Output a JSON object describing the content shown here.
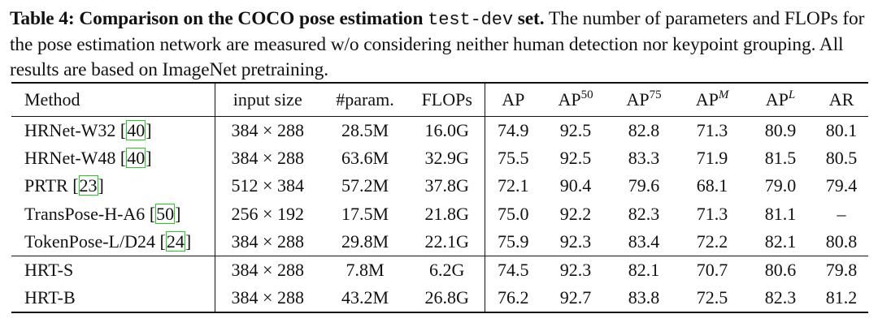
{
  "caption": {
    "label": "Table 4:",
    "bold_text": "Comparison on the COCO pose estimation",
    "mono_text": "test-dev",
    "bold_end": "set.",
    "body": "The number of parameters and FLOPs for the pose estimation network are measured w/o considering neither human detection nor keypoint grouping. All results are based on ImageNet pretraining."
  },
  "table": {
    "headers": {
      "method": "Method",
      "input_size": "input size",
      "param": "#param.",
      "flops": "FLOPs",
      "ap": "AP",
      "ap50_base": "AP",
      "ap50_sup": "50",
      "ap75_base": "AP",
      "ap75_sup": "75",
      "apm_base": "AP",
      "apm_sup": "M",
      "apl_base": "AP",
      "apl_sup": "L",
      "ar": "AR"
    },
    "group1": [
      {
        "name": "HRNet-W32 ",
        "ref": "40",
        "tail": "",
        "input": "384 × 288",
        "param": "28.5M",
        "flops": "16.0G",
        "ap": "74.9",
        "ap50": "92.5",
        "ap75": "82.8",
        "apm": "71.3",
        "apl": "80.9",
        "ar": "80.1"
      },
      {
        "name": "HRNet-W48 ",
        "ref": "40",
        "tail": "",
        "input": "384 × 288",
        "param": "63.6M",
        "flops": "32.9G",
        "ap": "75.5",
        "ap50": "92.5",
        "ap75": "83.3",
        "apm": "71.9",
        "apl": "81.5",
        "ar": "80.5"
      },
      {
        "name": "PRTR ",
        "ref": "23",
        "tail": "",
        "input": "512 × 384",
        "param": "57.2M",
        "flops": "37.8G",
        "ap": "72.1",
        "ap50": "90.4",
        "ap75": "79.6",
        "apm": "68.1",
        "apl": "79.0",
        "ar": "79.4"
      },
      {
        "name": "TransPose-H-A6 ",
        "ref": "50",
        "tail": "",
        "input": "256 × 192",
        "param": "17.5M",
        "flops": "21.8G",
        "ap": "75.0",
        "ap50": "92.2",
        "ap75": "82.3",
        "apm": "71.3",
        "apl": "81.1",
        "ar": "–"
      },
      {
        "name": "TokenPose-L/D24 ",
        "ref": "24",
        "tail": "",
        "input": "384 × 288",
        "param": "29.8M",
        "flops": "22.1G",
        "ap": "75.9",
        "ap50": "92.3",
        "ap75": "83.4",
        "apm": "72.2",
        "apl": "82.1",
        "ar": "80.8"
      }
    ],
    "group2": [
      {
        "name": "HRT-S",
        "input": "384 × 288",
        "param": "7.8M",
        "flops": "6.2G",
        "ap": "74.5",
        "ap50": "92.3",
        "ap75": "82.1",
        "apm": "70.7",
        "apl": "80.6",
        "ar": "79.8"
      },
      {
        "name": "HRT-B",
        "input": "384 × 288",
        "param": "43.2M",
        "flops": "26.8G",
        "ap": "76.2",
        "ap50": "92.7",
        "ap75": "83.8",
        "apm": "72.5",
        "apl": "82.3",
        "ar": "81.2"
      }
    ]
  }
}
